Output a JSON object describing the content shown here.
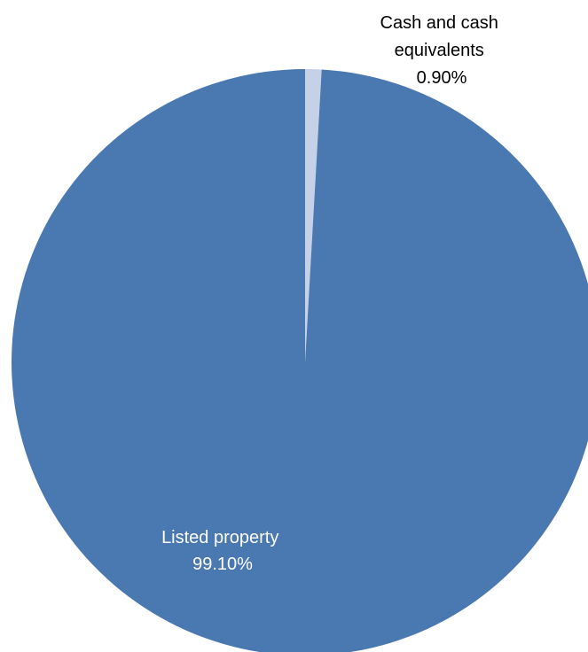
{
  "chart_data": {
    "type": "pie",
    "title": "",
    "slices": [
      {
        "label_lines": [
          "Cash and cash",
          "equivalents"
        ],
        "value": 0.9,
        "value_label": "0.90%",
        "color": "#c5d1e6",
        "label_color": "#000000"
      },
      {
        "label_lines": [
          "Listed property"
        ],
        "value": 99.1,
        "value_label": "99.10%",
        "color": "#4a78b0",
        "label_color": "#ffffff"
      }
    ],
    "start_angle_deg": 0,
    "direction": "clockwise",
    "legend": "none"
  }
}
